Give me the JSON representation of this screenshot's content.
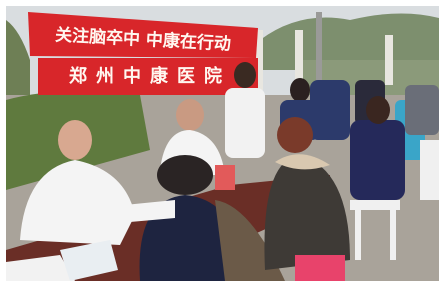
{
  "banner": {
    "line1": "关注脑卒中 中康在行动",
    "line2": "郑州中康医院"
  }
}
